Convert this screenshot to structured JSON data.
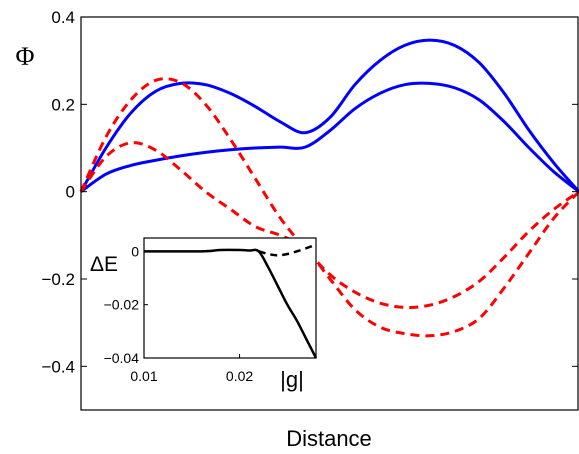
{
  "chart_data": [
    {
      "type": "line",
      "title": "",
      "xlabel": "Distance",
      "ylabel": "Φ",
      "xlim": [
        0,
        1
      ],
      "ylim": [
        -0.5,
        0.4
      ],
      "yticks": [
        {
          "value": 0.4,
          "label": "0.4"
        },
        {
          "value": 0.2,
          "label": "0.2"
        },
        {
          "value": 0,
          "label": "0"
        },
        {
          "value": -0.2,
          "label": "−0.2"
        },
        {
          "value": -0.4,
          "label": "−0.4"
        }
      ],
      "grid": false,
      "series": [
        {
          "color": "#0000ff",
          "style": "solid",
          "x": [
            0,
            0.05,
            0.1,
            0.15,
            0.2,
            0.25,
            0.3,
            0.35,
            0.4,
            0.45,
            0.5,
            0.55,
            0.6,
            0.65,
            0.7,
            0.75,
            0.8,
            0.85,
            0.9,
            0.95,
            1.0
          ],
          "y": [
            0,
            0.1,
            0.18,
            0.23,
            0.248,
            0.245,
            0.225,
            0.195,
            0.16,
            0.135,
            0.17,
            0.245,
            0.3,
            0.335,
            0.347,
            0.335,
            0.295,
            0.225,
            0.14,
            0.065,
            0
          ]
        },
        {
          "color": "#0000ff",
          "style": "solid",
          "x": [
            0,
            0.05,
            0.1,
            0.15,
            0.2,
            0.25,
            0.3,
            0.35,
            0.4,
            0.45,
            0.5,
            0.55,
            0.6,
            0.65,
            0.7,
            0.75,
            0.8,
            0.85,
            0.9,
            0.95,
            1.0
          ],
          "y": [
            0,
            0.04,
            0.06,
            0.072,
            0.082,
            0.09,
            0.096,
            0.1,
            0.102,
            0.102,
            0.14,
            0.19,
            0.225,
            0.245,
            0.248,
            0.238,
            0.21,
            0.16,
            0.1,
            0.045,
            0
          ]
        },
        {
          "color": "#ff0000",
          "style": "dashed",
          "x": [
            0,
            0.05,
            0.1,
            0.15,
            0.2,
            0.25,
            0.3,
            0.35,
            0.4,
            0.45,
            0.5,
            0.55,
            0.6,
            0.65,
            0.7,
            0.75,
            0.8,
            0.85,
            0.9,
            0.95,
            1.0
          ],
          "y": [
            0,
            0.125,
            0.21,
            0.255,
            0.25,
            0.2,
            0.12,
            0.03,
            -0.06,
            -0.13,
            -0.19,
            -0.23,
            -0.255,
            -0.265,
            -0.26,
            -0.24,
            -0.205,
            -0.15,
            -0.09,
            -0.04,
            0
          ]
        },
        {
          "color": "#ff0000",
          "style": "dashed",
          "x": [
            0,
            0.05,
            0.1,
            0.15,
            0.2,
            0.25,
            0.3,
            0.35,
            0.4,
            0.45,
            0.5,
            0.55,
            0.6,
            0.65,
            0.7,
            0.75,
            0.8,
            0.85,
            0.9,
            0.95,
            1.0
          ],
          "y": [
            0,
            0.08,
            0.112,
            0.095,
            0.05,
            0.0,
            -0.04,
            -0.08,
            -0.1,
            -0.13,
            -0.2,
            -0.27,
            -0.31,
            -0.325,
            -0.33,
            -0.32,
            -0.29,
            -0.22,
            -0.14,
            -0.06,
            0
          ]
        }
      ]
    },
    {
      "type": "line",
      "title": "",
      "xlabel": "|g|",
      "ylabel": "ΔE",
      "xlim": [
        0.01,
        0.028
      ],
      "ylim": [
        -0.04,
        0.005
      ],
      "xticks": [
        {
          "value": 0.01,
          "label": "0.01"
        },
        {
          "value": 0.02,
          "label": "0.02"
        }
      ],
      "yticks": [
        {
          "value": 0,
          "label": "0"
        },
        {
          "value": -0.02,
          "label": "−0.02"
        },
        {
          "value": -0.04,
          "label": "−0.04"
        }
      ],
      "grid": false,
      "series": [
        {
          "color": "#000000",
          "style": "solid",
          "x": [
            0.01,
            0.016,
            0.018,
            0.02,
            0.021,
            0.022,
            0.023,
            0.024,
            0.025,
            0.026,
            0.027,
            0.028
          ],
          "y": [
            0.0,
            0.0,
            0.0005,
            0.0005,
            0.0003,
            0.0,
            -0.006,
            -0.013,
            -0.02,
            -0.026,
            -0.033,
            -0.04
          ]
        },
        {
          "color": "#000000",
          "style": "dashed",
          "x": [
            0.022,
            0.023,
            0.024,
            0.025,
            0.026,
            0.027,
            0.028
          ],
          "y": [
            0.0,
            -0.001,
            -0.0015,
            -0.001,
            0.0,
            0.0012,
            0.0025
          ]
        }
      ]
    }
  ]
}
